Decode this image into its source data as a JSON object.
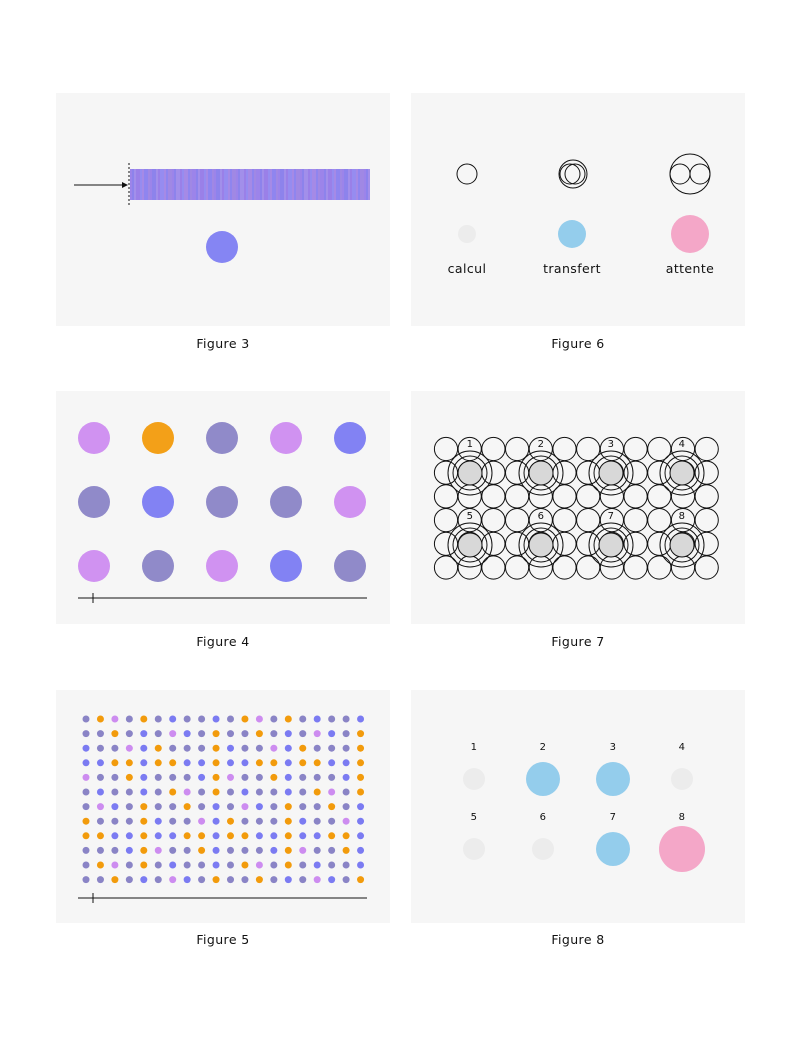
{
  "colors": {
    "panel_bg": "#f6f6f6",
    "blue": "#7b7bf2",
    "violet": "#8a84c6",
    "pink_violet": "#cd8cf0",
    "orange": "#f29b0c",
    "light_blue": "#94cdec",
    "pink": "#f4a7c8",
    "gray": "#ececec",
    "stroke": "#111111"
  },
  "figure3": {
    "caption": "Figure 3",
    "bar_colors": [
      "#9c84ea",
      "#a088e4",
      "#8f85ef",
      "#a58ae6",
      "#968cf0",
      "#9a80e8",
      "#a28fea",
      "#8d83ec"
    ]
  },
  "figure6": {
    "caption": "Figure 6",
    "items": [
      {
        "label": "calcul",
        "dot_color": "#ececec",
        "circles": 1
      },
      {
        "label": "transfert",
        "dot_color": "#94cdec",
        "circles": 2
      },
      {
        "label": "attente",
        "dot_color": "#f4a7c8",
        "circles": 3
      }
    ]
  },
  "figure4": {
    "caption": "Figure 4",
    "grid": [
      [
        "#cd8cf0",
        "#f29b0c",
        "#8a84c6",
        "#cd8cf0",
        "#7b7bf2"
      ],
      [
        "#8a84c6",
        "#7b7bf2",
        "#8a84c6",
        "#8a84c6",
        "#cd8cf0"
      ],
      [
        "#cd8cf0",
        "#8a84c6",
        "#cd8cf0",
        "#7b7bf2",
        "#8a84c6"
      ]
    ]
  },
  "figure7": {
    "caption": "Figure 7",
    "nodes": [
      "1",
      "2",
      "3",
      "4",
      "5",
      "6",
      "7",
      "8"
    ]
  },
  "figure5": {
    "caption": "Figure 5",
    "palette": [
      "#f29b0c",
      "#8a84c6",
      "#7b7bf2",
      "#cd8cf0"
    ]
  },
  "figure8": {
    "caption": "Figure 8",
    "nodes": [
      {
        "label": "1",
        "color": "#ececec",
        "size": "small"
      },
      {
        "label": "2",
        "color": "#94cdec",
        "size": "medium"
      },
      {
        "label": "3",
        "color": "#94cdec",
        "size": "medium"
      },
      {
        "label": "4",
        "color": "#ececec",
        "size": "small"
      },
      {
        "label": "5",
        "color": "#ececec",
        "size": "small"
      },
      {
        "label": "6",
        "color": "#ececec",
        "size": "small"
      },
      {
        "label": "7",
        "color": "#94cdec",
        "size": "medium"
      },
      {
        "label": "8",
        "color": "#f4a7c8",
        "size": "large"
      }
    ]
  }
}
